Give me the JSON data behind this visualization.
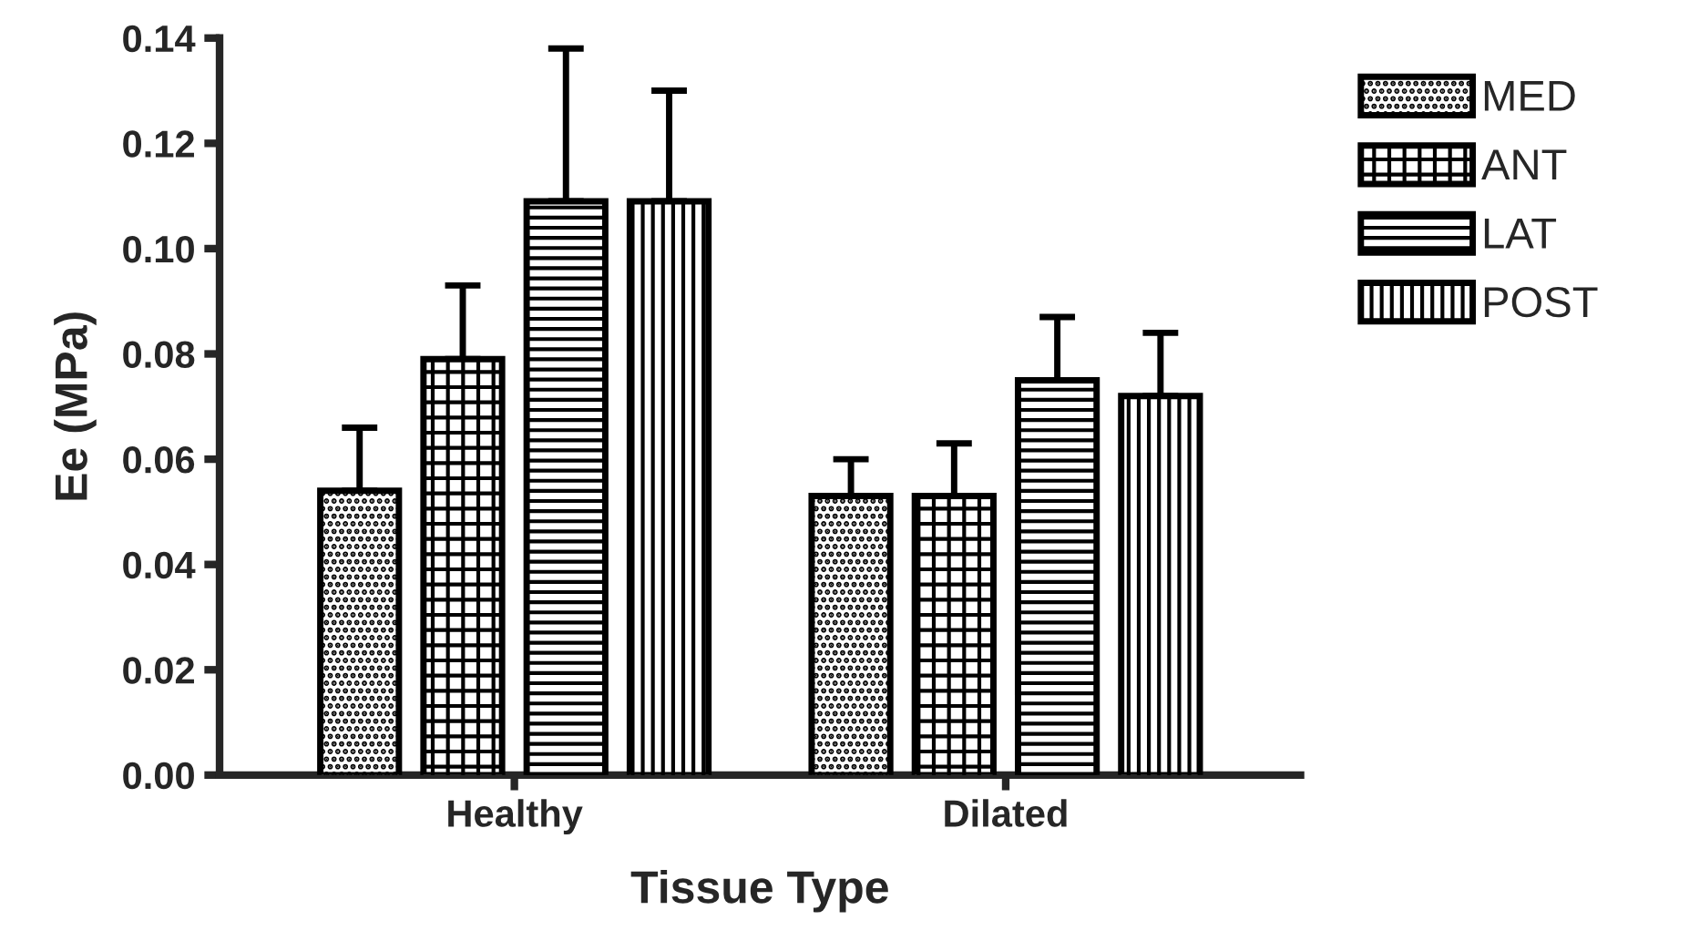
{
  "chart_data": {
    "type": "bar",
    "xlabel": "Tissue Type",
    "ylabel": "Ee (MPa)",
    "categories": [
      "Healthy",
      "Dilated"
    ],
    "series": [
      {
        "name": "MED",
        "color": "#000000",
        "values": [
          0.054,
          0.053
        ],
        "errors": [
          0.012,
          0.007
        ]
      },
      {
        "name": "ANT",
        "color": "#000000",
        "values": [
          0.079,
          0.053
        ],
        "errors": [
          0.014,
          0.01
        ]
      },
      {
        "name": "LAT",
        "color": "#000000",
        "values": [
          0.109,
          0.075
        ],
        "errors": [
          0.029,
          0.012
        ]
      },
      {
        "name": "POST",
        "color": "#000000",
        "values": [
          0.109,
          0.072
        ],
        "errors": [
          0.021,
          0.012
        ]
      }
    ],
    "ylim": [
      0,
      0.14
    ],
    "yticks": [
      {
        "value": 0,
        "label": "0.00"
      },
      {
        "value": 0.02,
        "label": "0.02"
      },
      {
        "value": 0.04,
        "label": "0.04"
      },
      {
        "value": 0.06,
        "label": "0.06"
      },
      {
        "value": 0.08,
        "label": "0.08"
      },
      {
        "value": 0.1,
        "label": "0.10"
      },
      {
        "value": 0.12,
        "label": "0.12"
      },
      {
        "value": 0.14,
        "label": "0.14"
      }
    ],
    "grid": false,
    "legend": "right"
  }
}
